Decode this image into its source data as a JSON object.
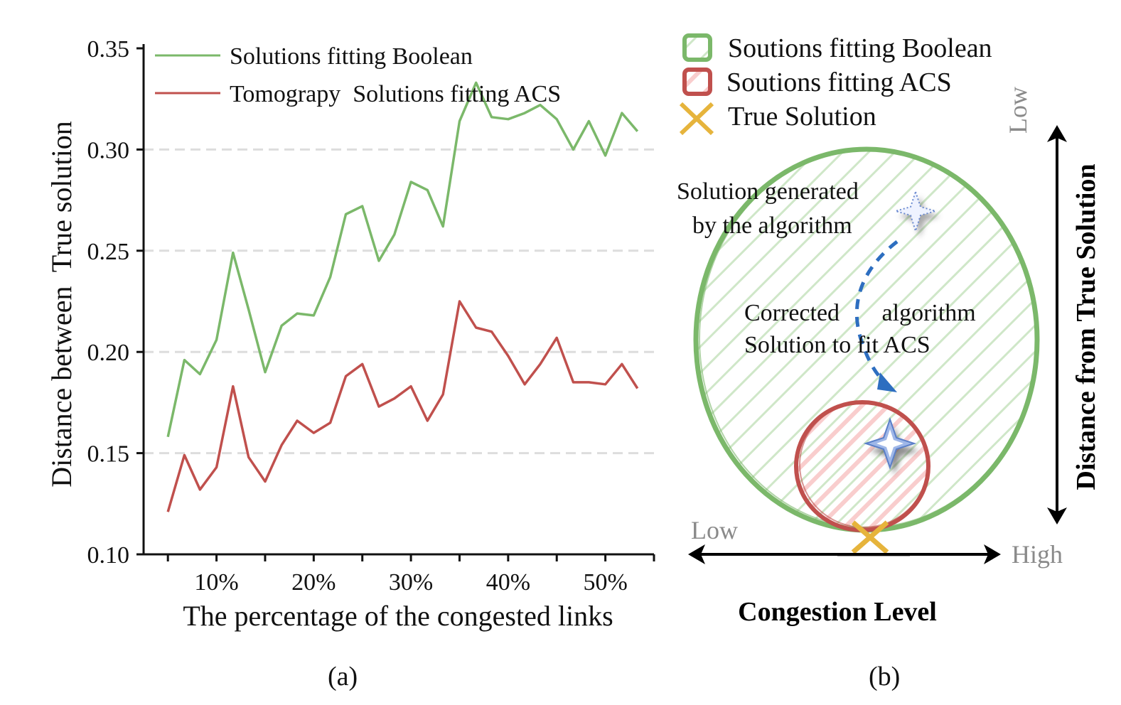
{
  "chart_data": [
    {
      "type": "line",
      "panel": "(a)",
      "xlabel": "The percentage of the congested links",
      "ylabel": "Distance between  True solution",
      "ylim": [
        0.1,
        0.35
      ],
      "xlim": [
        2.5,
        55
      ],
      "yticks": [
        0.1,
        0.15,
        0.2,
        0.25,
        0.3,
        0.35
      ],
      "ytick_labels": [
        "0.10",
        "0.15",
        "0.20",
        "0.25",
        "0.30",
        "0.35"
      ],
      "xticks": [
        5,
        10,
        15,
        20,
        25,
        30,
        35,
        40,
        45,
        50,
        55
      ],
      "xtick_labels": [
        "",
        "10%",
        "",
        "20%",
        "",
        "30%",
        "",
        "40%",
        "",
        "50%",
        ""
      ],
      "grid_y": [
        0.15,
        0.2,
        0.25,
        0.3
      ],
      "legend_position": "top-left",
      "x": [
        5,
        6.7,
        8.3,
        10,
        11.7,
        13.3,
        15,
        16.7,
        18.3,
        20,
        21.7,
        23.3,
        25,
        26.7,
        28.3,
        30,
        31.7,
        33.3,
        35,
        36.7,
        38.3,
        40,
        41.7,
        43.3,
        45,
        46.7,
        48.3,
        50,
        51.7,
        53.3
      ],
      "series": [
        {
          "name": "Solutions fitting Boolean",
          "color": "#7bb86a",
          "values": [
            0.158,
            0.196,
            0.189,
            0.206,
            0.249,
            0.221,
            0.19,
            0.213,
            0.219,
            0.218,
            0.237,
            0.268,
            0.272,
            0.245,
            0.258,
            0.284,
            0.28,
            0.262,
            0.314,
            0.333,
            0.316,
            0.315,
            0.318,
            0.322,
            0.315,
            0.3,
            0.314,
            0.297,
            0.318,
            0.309
          ]
        },
        {
          "name": "Tomograpy  Solutions fitting ACS",
          "color": "#c0504d",
          "values": [
            0.121,
            0.149,
            0.132,
            0.143,
            0.183,
            0.148,
            0.136,
            0.154,
            0.166,
            0.16,
            0.165,
            0.188,
            0.194,
            0.173,
            0.177,
            0.183,
            0.166,
            0.179,
            0.225,
            0.212,
            0.21,
            0.198,
            0.184,
            0.194,
            0.207,
            0.185,
            0.185,
            0.184,
            0.194,
            0.182
          ]
        }
      ]
    },
    {
      "type": "diagram",
      "panel": "(b)",
      "legend": [
        {
          "label": "Soutions fitting Boolean",
          "color": "#7bb86a",
          "marker": "hatched-square"
        },
        {
          "label": "Soutions fitting ACS",
          "color": "#c0504d",
          "marker": "hatched-square"
        },
        {
          "label": "True Solution",
          "color": "#e6b43c",
          "marker": "cross"
        }
      ],
      "xlabel": "Congestion Level",
      "ylabel": "Distance from True Solution",
      "x_low": "Low",
      "x_high": "High",
      "y_low": "Low",
      "annotations": {
        "generated": [
          "Solution generated",
          "by the algorithm"
        ],
        "corrected": [
          "Corrected       algorithm",
          "Solution to fit ACS"
        ]
      }
    }
  ],
  "captions": {
    "a": "(a)",
    "b": "(b)"
  }
}
